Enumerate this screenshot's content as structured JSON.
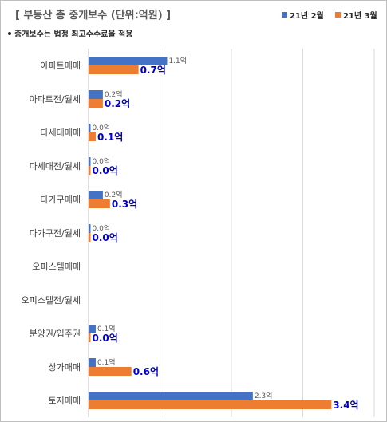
{
  "chart_data": {
    "type": "bar",
    "orientation": "horizontal",
    "title": "[ 부동산 총 중개보수 (단위:억원) ]",
    "note": "중개보수는 법정 최고수수료율 적용",
    "categories": [
      "아파트매매",
      "아파트전/월세",
      "다세대매매",
      "다세대전/월세",
      "다가구매매",
      "다가구전/월세",
      "오피스텔매매",
      "오피스텔전/월세",
      "분양권/입주권",
      "상가매매",
      "토지매매"
    ],
    "series": [
      {
        "name": "21년 2월",
        "color": "#4472c4",
        "values": [
          1.1,
          0.2,
          0.0,
          0.0,
          0.2,
          0.0,
          null,
          null,
          0.1,
          0.1,
          2.3
        ],
        "labels": [
          "1.1억",
          "0.2억",
          "0.0억",
          "0.0억",
          "0.2억",
          "0.0억",
          "",
          "",
          "0.1억",
          "0.1억",
          "2.3억"
        ]
      },
      {
        "name": "21년 3월",
        "color": "#ed7d31",
        "values": [
          0.7,
          0.2,
          0.1,
          0.0,
          0.3,
          0.0,
          null,
          null,
          0.0,
          0.6,
          3.4
        ],
        "labels": [
          "0.7억",
          "0.2억",
          "0.1억",
          "0.0억",
          "0.3억",
          "0.0억",
          "",
          "",
          "0.0억",
          "0.6억",
          "3.4억"
        ]
      }
    ],
    "xlim": [
      0,
      4
    ],
    "grid": true,
    "legend": "top-right"
  }
}
